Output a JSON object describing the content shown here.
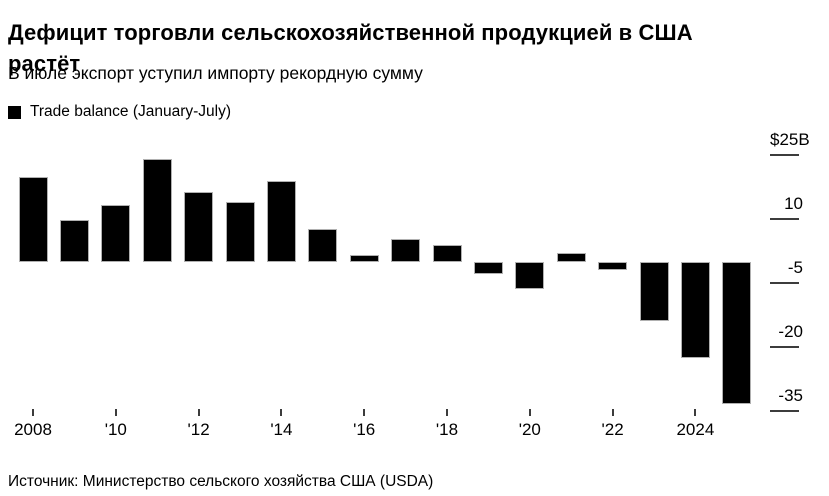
{
  "header": {
    "title_lines": [
      "Дефицит торговли сельскохозяйственной продукцией в США",
      "растёт"
    ],
    "subtitle": "В июле экспорт уступил импорту рекордную сумму"
  },
  "legend": {
    "label": "Trade balance (January-July)",
    "swatch_color": "#000000"
  },
  "footer": {
    "source": "Источник: Министерство сельского хозяйства США (USDA)"
  },
  "chart_data": {
    "type": "bar",
    "title": "Дефицит торговли сельскохозяйственной продукцией в США растёт",
    "subtitle": "В июле экспорт уступил импорту рекордную сумму",
    "legend": [
      "Trade balance (January-July)"
    ],
    "legend_position": "top-left",
    "unit": "$B",
    "bar_color": "#000000",
    "grid": false,
    "categories": [
      2008,
      2009,
      2010,
      2011,
      2012,
      2013,
      2014,
      2015,
      2016,
      2017,
      2018,
      2019,
      2020,
      2021,
      2022,
      2023,
      2024,
      2025
    ],
    "values": [
      19.8,
      9.8,
      13.2,
      24.1,
      16.3,
      14.0,
      18.9,
      7.7,
      1.6,
      5.4,
      3.9,
      -3.0,
      -6.5,
      2.1,
      -1.9,
      -13.8,
      -22.6,
      -33.4
    ],
    "ylim": [
      -38,
      27
    ],
    "y_ticks": [
      {
        "value": 25,
        "label": "$25B"
      },
      {
        "value": 10,
        "label": "10"
      },
      {
        "value": -5,
        "label": "-5"
      },
      {
        "value": -20,
        "label": "-20"
      },
      {
        "value": -35,
        "label": "-35"
      }
    ],
    "x_ticks": [
      {
        "year": 2008,
        "label": "2008"
      },
      {
        "year": 2010,
        "label": "'10"
      },
      {
        "year": 2012,
        "label": "'12"
      },
      {
        "year": 2014,
        "label": "'14"
      },
      {
        "year": 2016,
        "label": "'16"
      },
      {
        "year": 2018,
        "label": "'18"
      },
      {
        "year": 2020,
        "label": "'20"
      },
      {
        "year": 2022,
        "label": "'22"
      },
      {
        "year": 2024,
        "label": "2024"
      }
    ]
  }
}
